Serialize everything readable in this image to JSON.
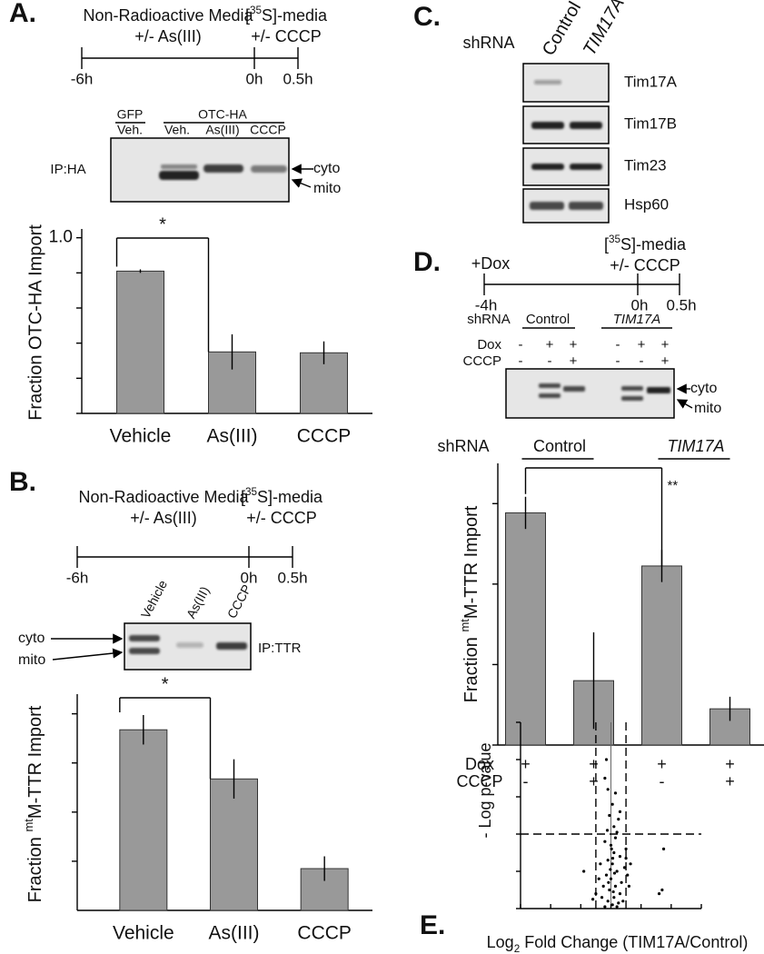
{
  "panel_labels": [
    "A.",
    "B.",
    "C.",
    "D.",
    "E."
  ],
  "timeline_a": {
    "left": {
      "line1": "Non-Radioactive Media",
      "line2": "+/- As(III)"
    },
    "right": {
      "line1": {
        "pre": "[",
        "sup": "35",
        "post": "S]-media"
      },
      "line2": "+/- CCCP"
    },
    "times": [
      "-6h",
      "0h",
      "0.5h"
    ]
  },
  "blot_a": {
    "groups": [
      "GFP",
      "OTC-HA"
    ],
    "lanes": [
      "Veh.",
      "Veh.",
      "As(III)",
      "CCCP"
    ],
    "ip": "IP:HA",
    "bands": [
      "cyto",
      "mito"
    ]
  },
  "timeline_b": {
    "left": {
      "line1": "Non-Radioactive Media",
      "line2": "+/- As(III)"
    },
    "right": {
      "line1": {
        "pre": "[",
        "sup": "35",
        "post": "S]-media"
      },
      "line2": "+/- CCCP"
    },
    "times": [
      "-6h",
      "0h",
      "0.5h"
    ]
  },
  "blot_b": {
    "lanes": [
      "Vehicle",
      "As(III)",
      "CCCP"
    ],
    "ip": "IP:TTR",
    "bands": [
      "cyto",
      "mito"
    ]
  },
  "panel_c": {
    "row_label": "shRNA",
    "columns": [
      "Control",
      "TIM17A"
    ],
    "proteins": [
      "Tim17A",
      "Tim17B",
      "Tim23",
      "Hsp60"
    ]
  },
  "timeline_d": {
    "left": "+Dox",
    "right": {
      "line1": {
        "pre": "[",
        "sup": "35",
        "post": "S]-media"
      },
      "line2": "+/- CCCP"
    },
    "times": [
      "-4h",
      "0h",
      "0.5h"
    ]
  },
  "blot_d": {
    "row_label": "shRNA",
    "groups": [
      "Control",
      "TIM17A"
    ],
    "rows": [
      {
        "label": "Dox",
        "signs": [
          "-",
          "+",
          "+",
          "-",
          "+",
          "+"
        ]
      },
      {
        "label": "CCCP",
        "signs": [
          "-",
          "-",
          "+",
          "-",
          "-",
          "+"
        ]
      }
    ],
    "bands": [
      "cyto",
      "mito"
    ]
  },
  "chart_data": [
    {
      "type": "bar",
      "ylabel": "Fraction OTC-HA Import",
      "categories": [
        "Vehicle",
        "As(III)",
        "CCCP"
      ],
      "values": [
        0.81,
        0.35,
        0.345
      ],
      "errors": [
        0.01,
        0.1,
        0.065
      ],
      "color": "#999999",
      "ylim": [
        0,
        1.05
      ],
      "yticks": [
        0,
        0.2,
        0.4,
        0.6,
        0.8,
        {
          "value": 1,
          "label": "1.0"
        }
      ],
      "annotation": "*"
    },
    {
      "type": "bar",
      "ylabel": {
        "pre": "Fraction ",
        "sup": "mt",
        "post": "M-TTR Import"
      },
      "categories": [
        "Vehicle",
        "As(III)",
        "CCCP"
      ],
      "values": [
        0.735,
        0.535,
        0.17
      ],
      "errors": [
        0.06,
        0.08,
        0.05
      ],
      "color": "#999999",
      "ylim": [
        0,
        0.88
      ],
      "yticks": [
        0.2,
        0.4,
        0.6,
        0.8
      ],
      "annotation": "*"
    },
    {
      "type": "bar",
      "ylabel": {
        "pre": "Fraction ",
        "sup": "mt",
        "post": "M-TTR Import"
      },
      "group_label": "shRNA",
      "groups": [
        "Control",
        "TIM17A"
      ],
      "categories": [
        null,
        null,
        null,
        null
      ],
      "rows": [
        {
          "label": "Dox",
          "signs": [
            "+",
            "+",
            "+",
            "+"
          ]
        },
        {
          "label": "CCCP",
          "signs": [
            "-",
            "+",
            "-",
            "+"
          ]
        }
      ],
      "values": [
        0.577,
        0.16,
        0.445,
        0.09
      ],
      "errors": [
        0.04,
        0.12,
        0.04,
        0.03
      ],
      "color": "#999999",
      "ylim": [
        0,
        0.7
      ],
      "yticks": [
        0,
        0.2,
        0.4,
        0.6
      ],
      "annotation": "**"
    },
    {
      "type": "scatter",
      "xlabel": {
        "pre": "Log",
        "sub": "2",
        "post": " Fold Change (TIM17A/Control)"
      },
      "ylabel": "- Log p-value",
      "color": "#000000",
      "x": [
        -0.1,
        0.05,
        0.1,
        -0.05,
        0.15,
        0,
        -0.15,
        0.2,
        0.05,
        -0.1,
        0.1,
        0,
        -0.2,
        0.15,
        0.3,
        -0.3,
        0.25,
        -0.2,
        0.4,
        0.35,
        -0.25,
        0.45,
        -0.35,
        0.3,
        -0.4,
        0.5,
        0.55,
        -0.5,
        0.2,
        0.08,
        -0.08,
        0.12,
        -0.02,
        0.06,
        0.02,
        -0.12,
        0.1,
        -0.05,
        0.05,
        -0.1,
        -0.2,
        -0.15,
        0.25,
        0.3,
        0.15,
        0.2,
        0.5,
        -0.6,
        1.6,
        1.7,
        1.75,
        -0.9,
        0.6,
        0.65
      ],
      "values": [
        0.2,
        0.1,
        0.3,
        0.5,
        0.6,
        0.8,
        0.9,
        1.0,
        1.2,
        1.3,
        1.5,
        1.7,
        1.8,
        1.9,
        0.4,
        0.3,
        0.15,
        0.05,
        0.2,
        0.7,
        0.6,
        1.1,
        1.2,
        1.4,
        0.8,
        1.6,
        0.9,
        0.4,
        0.05,
        0.45,
        0.7,
        0.95,
        1.05,
        1.35,
        1.6,
        2.1,
        2.2,
        2.5,
        2.8,
        3.2,
        3.5,
        4.0,
        2.4,
        2.6,
        3.1,
        2.05,
        1.35,
        0.25,
        0.4,
        0.5,
        1.6,
        1.0,
        0.6,
        1.2
      ],
      "xlim": [
        -3,
        3
      ],
      "ylim": [
        0,
        5
      ],
      "xticks": [
        -3,
        -2,
        -1,
        0,
        1,
        2,
        3
      ],
      "yticks": [
        0,
        1,
        2,
        3,
        4,
        5
      ],
      "hlines": [
        2
      ],
      "vlines": [
        -0.5,
        0.5
      ]
    }
  ]
}
